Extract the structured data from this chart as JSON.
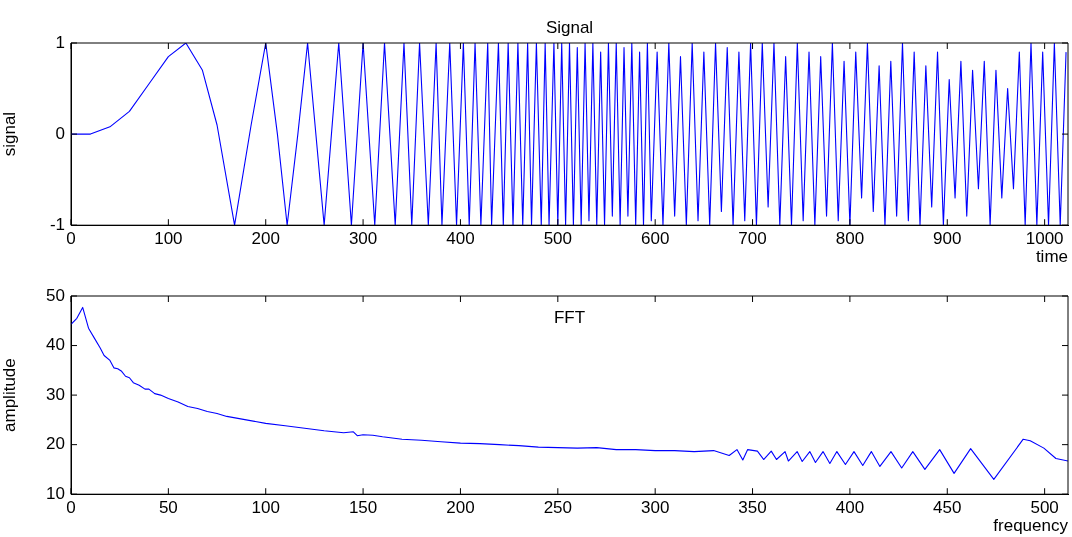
{
  "chart_data": [
    {
      "type": "line",
      "title": "Signal",
      "xlabel": "time",
      "ylabel": "signal",
      "xlim": [
        0,
        1024
      ],
      "xticks": [
        0,
        100,
        200,
        300,
        400,
        500,
        600,
        700,
        800,
        900,
        1000
      ],
      "ylim": [
        -1,
        1
      ],
      "yticks": [
        -1,
        0,
        1
      ],
      "grid": false,
      "marker": "none",
      "line_style": "solid",
      "x": [
        0,
        20,
        40,
        60,
        80,
        100,
        118,
        135,
        150,
        168,
        185,
        200,
        212,
        222,
        233,
        243,
        260,
        275,
        288,
        300,
        312,
        322,
        333,
        342,
        350,
        358,
        367,
        375,
        381,
        389,
        396,
        403,
        409,
        415,
        421,
        428,
        432,
        439,
        444,
        449,
        454,
        459,
        464,
        469,
        473,
        478,
        483,
        487,
        491,
        496,
        500,
        504,
        508,
        512,
        516,
        520,
        524,
        528,
        532,
        536,
        540,
        544,
        548,
        552,
        556,
        560,
        564,
        568,
        572,
        576,
        580,
        584,
        588,
        592,
        596,
        602,
        608,
        614,
        620,
        626,
        632,
        638,
        644,
        650,
        656,
        662,
        668,
        674,
        680,
        686,
        692,
        698,
        704,
        710,
        716,
        722,
        728,
        734,
        740,
        746,
        752,
        758,
        764,
        770,
        776,
        782,
        788,
        794,
        800,
        806,
        812,
        818,
        824,
        830,
        836,
        842,
        848,
        854,
        860,
        866,
        872,
        878,
        884,
        890,
        896,
        902,
        908,
        914,
        920,
        926,
        932,
        938,
        944,
        950,
        956,
        962,
        968,
        974,
        980,
        986,
        992,
        998,
        1004,
        1010,
        1016,
        1022
      ],
      "series": [
        {
          "color": "#0000ff",
          "values": [
            0,
            0,
            0.08,
            0.25,
            0.55,
            0.85,
            1,
            0.7,
            0.1,
            -1,
            0.1,
            1,
            0,
            -1,
            0,
            1,
            -1,
            1,
            -1,
            1,
            -1,
            1,
            -1,
            1,
            -1,
            1,
            -1,
            1,
            -1,
            1,
            -1,
            1,
            -1,
            1,
            -1,
            1,
            -1,
            1,
            -1,
            1,
            -1,
            1,
            -1,
            1,
            -1,
            1,
            -1,
            1,
            -1,
            1,
            -1,
            1,
            -1,
            1,
            -1,
            0.95,
            -1,
            1,
            -0.95,
            1,
            -1,
            0.9,
            -1,
            1,
            -0.9,
            1,
            -1,
            0.95,
            -0.9,
            1,
            -1,
            0.9,
            -1,
            1,
            -0.95,
            0.9,
            -1,
            1,
            -0.9,
            0.85,
            -1,
            1,
            -0.95,
            0.9,
            -1,
            1,
            -0.85,
            0.95,
            -1,
            0.9,
            -0.95,
            1,
            -1,
            1,
            -0.8,
            1,
            -1,
            0.85,
            -1,
            1,
            -0.95,
            0.9,
            -1,
            0.85,
            -0.9,
            1,
            -0.95,
            0.8,
            -1,
            0.9,
            -0.7,
            1,
            -0.85,
            0.75,
            -1,
            0.8,
            -0.9,
            1,
            -0.95,
            0.9,
            -1,
            0.75,
            -0.8,
            0.9,
            -1,
            0.6,
            -0.7,
            0.8,
            -0.9,
            0.7,
            -0.6,
            0.8,
            -1,
            0.7,
            -0.7,
            0.5,
            -0.6,
            0.9,
            -1,
            1,
            -1,
            0.9,
            -1,
            1,
            -1,
            0.9
          ]
        }
      ]
    },
    {
      "type": "line",
      "title": "FFT",
      "xlabel": "frequency",
      "ylabel": "amplitude",
      "xlim": [
        0,
        512
      ],
      "xticks": [
        0,
        50,
        100,
        150,
        200,
        250,
        300,
        350,
        400,
        450,
        500
      ],
      "ylim": [
        10,
        50
      ],
      "yticks": [
        10,
        20,
        30,
        40,
        50
      ],
      "grid": false,
      "marker": "none",
      "line_style": "solid",
      "x": [
        0,
        3,
        6,
        9,
        12,
        15,
        17,
        20,
        22,
        24,
        26,
        28,
        30,
        32,
        35,
        38,
        40,
        43,
        46,
        50,
        55,
        60,
        65,
        70,
        75,
        80,
        90,
        100,
        110,
        120,
        130,
        140,
        145,
        147,
        150,
        155,
        160,
        170,
        180,
        190,
        200,
        210,
        220,
        230,
        240,
        250,
        260,
        270,
        280,
        290,
        300,
        310,
        320,
        330,
        338,
        342,
        345,
        347.5,
        352.5,
        355.7,
        359.6,
        362.3,
        366.7,
        368.4,
        372.9,
        375.5,
        379.4,
        382.3,
        386.2,
        389.7,
        393.3,
        397.7,
        402.1,
        406.6,
        411,
        415.4,
        421.1,
        426.6,
        432.3,
        438.5,
        446.1,
        453.5,
        462,
        473.9,
        489,
        492.6,
        499.6,
        505.8,
        512
      ],
      "series": [
        {
          "color": "#0000ff",
          "values": [
            44.3,
            45.5,
            47.7,
            43.5,
            41.5,
            39.5,
            38,
            37,
            35.5,
            35.3,
            34.8,
            33.8,
            33.5,
            32.5,
            32,
            31.2,
            31.2,
            30.3,
            30,
            29.3,
            28.6,
            27.7,
            27.3,
            26.7,
            26.3,
            25.7,
            25,
            24.3,
            23.8,
            23.3,
            22.8,
            22.4,
            22.6,
            21.8,
            22,
            21.9,
            21.6,
            21.1,
            20.9,
            20.6,
            20.3,
            20.2,
            20,
            19.8,
            19.5,
            19.4,
            19.3,
            19.4,
            19,
            19,
            18.8,
            18.8,
            18.6,
            18.8,
            17.8,
            19,
            16.9,
            19,
            18.7,
            17,
            18.7,
            17,
            18.6,
            16.7,
            18.6,
            16.6,
            18.6,
            16.4,
            18.6,
            16.2,
            18.6,
            16,
            18.6,
            15.8,
            18.6,
            15.6,
            18.6,
            15.3,
            18.6,
            15,
            19,
            14.2,
            19.2,
            13,
            21.1,
            20.8,
            19.3,
            17.2,
            16.7
          ]
        }
      ]
    }
  ]
}
